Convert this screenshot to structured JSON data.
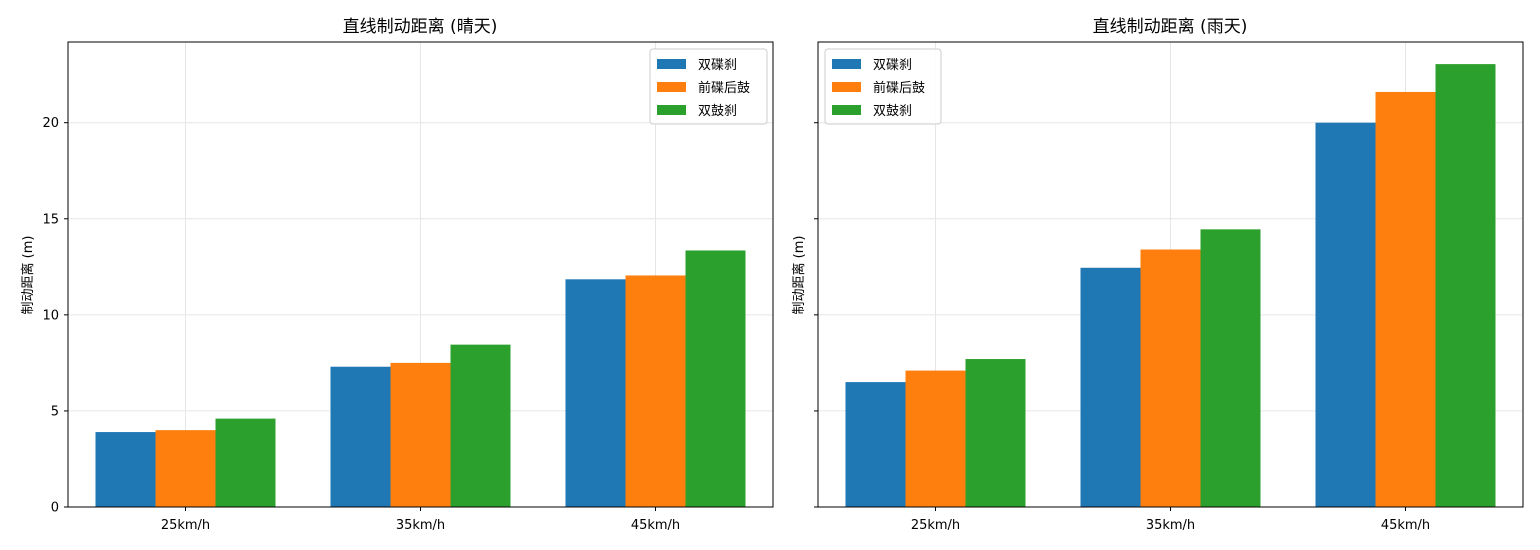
{
  "figure": {
    "sharey": true
  },
  "chart_data": [
    {
      "type": "bar",
      "title": "直线制动距离 (晴天)",
      "xlabel": "",
      "ylabel": "制动距离 (m)",
      "categories": [
        "25km/h",
        "35km/h",
        "45km/h"
      ],
      "series": [
        {
          "name": "双碟刹",
          "color": "#1f77b4",
          "values": [
            3.9,
            7.3,
            11.85
          ]
        },
        {
          "name": "前碟后鼓",
          "color": "#ff7f0e",
          "values": [
            4.0,
            7.5,
            12.05
          ]
        },
        {
          "name": "双鼓刹",
          "color": "#2ca02c",
          "values": [
            4.6,
            8.45,
            13.35
          ]
        }
      ],
      "ylim": [
        0,
        24.2
      ],
      "yticks": [
        0,
        5,
        10,
        15,
        20
      ],
      "grid": true,
      "legend_position": "top-right"
    },
    {
      "type": "bar",
      "title": "直线制动距离 (雨天)",
      "xlabel": "",
      "ylabel": "制动距离 (m)",
      "categories": [
        "25km/h",
        "35km/h",
        "45km/h"
      ],
      "series": [
        {
          "name": "双碟刹",
          "color": "#1f77b4",
          "values": [
            6.5,
            12.45,
            20.0
          ]
        },
        {
          "name": "前碟后鼓",
          "color": "#ff7f0e",
          "values": [
            7.1,
            13.4,
            21.6
          ]
        },
        {
          "name": "双鼓刹",
          "color": "#2ca02c",
          "values": [
            7.7,
            14.45,
            23.05
          ]
        }
      ],
      "ylim": [
        0,
        24.2
      ],
      "yticks": [
        0,
        5,
        10,
        15,
        20
      ],
      "grid": true,
      "legend_position": "top-left"
    }
  ]
}
